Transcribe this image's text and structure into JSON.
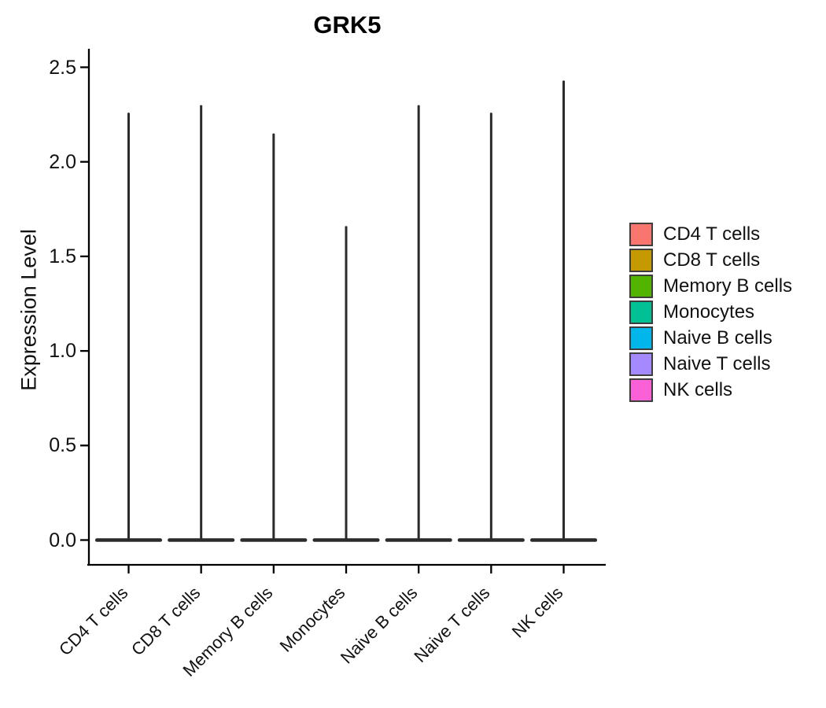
{
  "chart_data": {
    "type": "violin",
    "title": "GRK5",
    "xlabel": "",
    "ylabel": "Expression Level",
    "categories": [
      "CD4 T cells",
      "CD8 T cells",
      "Memory B cells",
      "Monocytes",
      "Naive B cells",
      "Naive T cells",
      "NK cells"
    ],
    "series": [
      {
        "name": "CD4 T cells",
        "color": "#F8766D",
        "max_expression": 2.26,
        "density_peak_value": 0
      },
      {
        "name": "CD8 T cells",
        "color": "#C49A00",
        "max_expression": 2.3,
        "density_peak_value": 0
      },
      {
        "name": "Memory B cells",
        "color": "#53B400",
        "max_expression": 2.15,
        "density_peak_value": 0
      },
      {
        "name": "Monocytes",
        "color": "#00C094",
        "max_expression": 1.66,
        "density_peak_value": 0
      },
      {
        "name": "Naive B cells",
        "color": "#00B6EB",
        "max_expression": 2.3,
        "density_peak_value": 0
      },
      {
        "name": "Naive T cells",
        "color": "#A58AFF",
        "max_expression": 2.26,
        "density_peak_value": 0
      },
      {
        "name": "NK cells",
        "color": "#FB61D7",
        "max_expression": 2.43,
        "density_peak_value": 0
      }
    ],
    "y_ticks": [
      "0.0",
      "0.5",
      "1.0",
      "1.5",
      "2.0",
      "2.5"
    ],
    "ylim": [
      0,
      2.5
    ],
    "shape_note": "each violin is a wide flat base at expression 0 with a very thin spike rising to max_expression",
    "violin_line_color": "#2b2b2b",
    "axis_color": "#000000",
    "legend_position": "right",
    "grid": false,
    "x_label_angle_deg": 45
  }
}
